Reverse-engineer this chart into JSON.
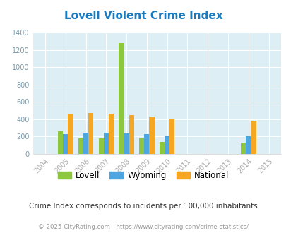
{
  "title": "Lovell Violent Crime Index",
  "years": [
    2004,
    2005,
    2006,
    2007,
    2008,
    2009,
    2010,
    2011,
    2012,
    2013,
    2014,
    2015
  ],
  "lovell": [
    0,
    260,
    180,
    180,
    1280,
    190,
    135,
    0,
    0,
    0,
    130,
    0
  ],
  "wyoming": [
    0,
    230,
    240,
    240,
    235,
    225,
    205,
    0,
    0,
    0,
    205,
    0
  ],
  "national": [
    0,
    465,
    475,
    465,
    450,
    430,
    405,
    0,
    0,
    0,
    380,
    0
  ],
  "lovell_color": "#8dc63f",
  "wyoming_color": "#4da6e0",
  "national_color": "#f5a623",
  "plot_bg": "#ddeef5",
  "title_color": "#1a7abf",
  "grid_color": "#ffffff",
  "ylim": [
    0,
    1400
  ],
  "yticks": [
    0,
    200,
    400,
    600,
    800,
    1000,
    1200,
    1400
  ],
  "subtitle": "Crime Index corresponds to incidents per 100,000 inhabitants",
  "footer": "© 2025 CityRating.com - https://www.cityrating.com/crime-statistics/",
  "bar_width": 0.25
}
